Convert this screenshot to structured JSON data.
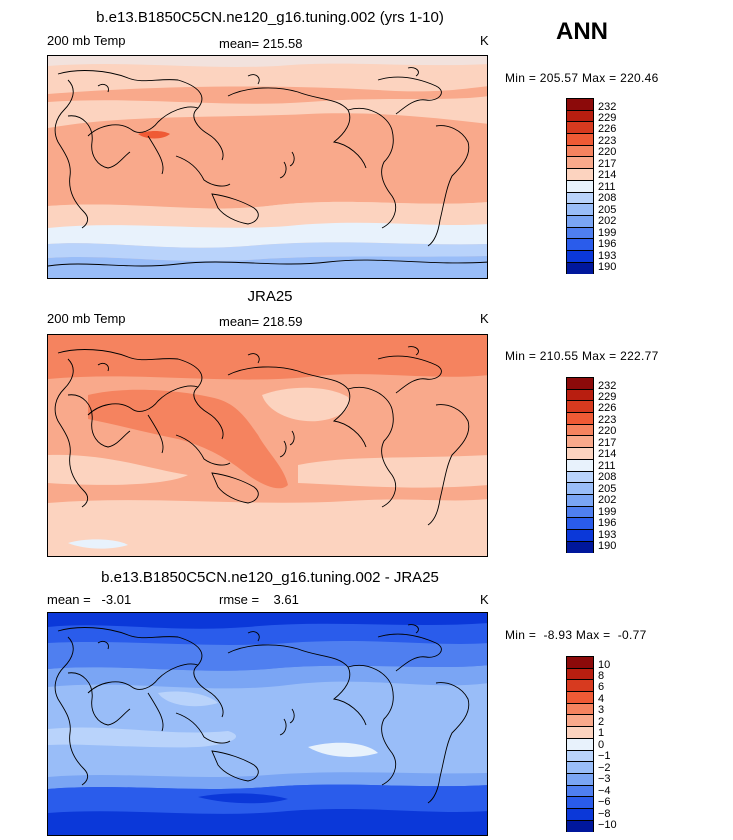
{
  "season": "ANN",
  "panels": [
    {
      "title": "b.e13.B1850C5CN.ne120_g16.tuning.002 (yrs 1-10)",
      "field": "200 mb Temp",
      "stat": "mean= 215.58",
      "unit": "K",
      "minmax": "Min = 205.57 Max = 220.46",
      "scale": [
        "232",
        "229",
        "226",
        "223",
        "220",
        "217",
        "214",
        "211",
        "208",
        "205",
        "202",
        "199",
        "196",
        "193",
        "190"
      ]
    },
    {
      "title": "JRA25",
      "field": "200 mb Temp",
      "stat": "mean= 218.59",
      "unit": "K",
      "minmax": "Min = 210.55 Max = 222.77",
      "scale": [
        "232",
        "229",
        "226",
        "223",
        "220",
        "217",
        "214",
        "211",
        "208",
        "205",
        "202",
        "199",
        "196",
        "193",
        "190"
      ]
    },
    {
      "title": "b.e13.B1850C5CN.ne120_g16.tuning.002 - JRA25",
      "field": "mean =   -3.01",
      "stat": "rmse =    3.61",
      "unit": "K",
      "minmax": "Min =  -8.93 Max =  -0.77",
      "scale": [
        "10",
        "8",
        "6",
        "4",
        "3",
        "2",
        "1",
        "0",
        "−1",
        "−2",
        "−3",
        "−4",
        "−6",
        "−8",
        "−10"
      ]
    }
  ],
  "colors": {
    "scale": [
      "#8c0a0a",
      "#b81e10",
      "#d73a1f",
      "#ef5a35",
      "#f5835f",
      "#f9a98b",
      "#fcd3bf",
      "#e8f2fc",
      "#b9d3fb",
      "#99bdf8",
      "#7aa5f4",
      "#4f7ff0",
      "#2a5ceb",
      "#0b38d9",
      "#00179c"
    ]
  }
}
